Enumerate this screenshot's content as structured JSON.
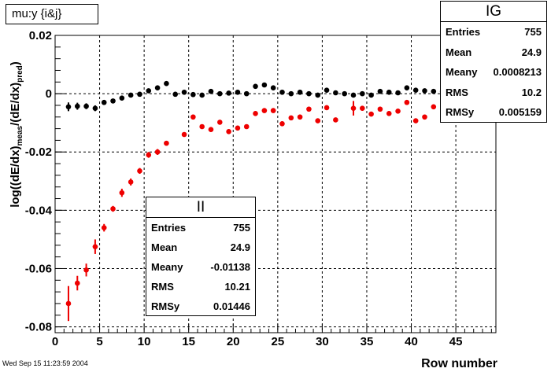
{
  "title": "mu:y {i&j}",
  "footer": "Wed Sep 15 11:23:59 2004",
  "colors": {
    "series_ig": "#000000",
    "series_ii": "#ee0000",
    "grid": "#000000"
  },
  "stats": {
    "ig": {
      "title": "IG",
      "rows": [
        {
          "label": "Entries",
          "value": "755"
        },
        {
          "label": "Mean",
          "value": "24.9"
        },
        {
          "label": "Meany",
          "value": "0.0008213"
        },
        {
          "label": "RMS",
          "value": "10.2"
        },
        {
          "label": "RMSy",
          "value": "0.005159"
        }
      ]
    },
    "ii": {
      "title": "II",
      "rows": [
        {
          "label": "Entries",
          "value": "755"
        },
        {
          "label": "Mean",
          "value": "24.9"
        },
        {
          "label": "Meany",
          "value": "-0.01138"
        },
        {
          "label": "RMS",
          "value": "10.21"
        },
        {
          "label": "RMSy",
          "value": "0.01446"
        }
      ]
    }
  },
  "chart_data": {
    "type": "scatter",
    "xlabel": "Row number",
    "ylabel": "log((dE/dx)meas/(dE/dx)pred)",
    "xlim": [
      0,
      49.5
    ],
    "ylim": [
      -0.082,
      0.02
    ],
    "grid": true,
    "x_ticks": [
      0,
      5,
      10,
      15,
      20,
      25,
      30,
      35,
      40,
      45
    ],
    "x_tick_labels": [
      "0",
      "5",
      "10",
      "15",
      "20",
      "25",
      "30",
      "35",
      "40",
      "45"
    ],
    "y_ticks": [
      -0.08,
      -0.06,
      -0.04,
      -0.02,
      0,
      0.02
    ],
    "y_tick_labels": [
      "-0.08",
      "-0.06",
      "-0.04",
      "-0.02",
      "0",
      "0.02"
    ],
    "series": [
      {
        "name": "IG",
        "color": "#000000",
        "x": [
          1.5,
          2.5,
          3.5,
          4.5,
          5.5,
          6.5,
          7.5,
          8.5,
          9.5,
          10.5,
          11.5,
          12.5,
          13.5,
          14.5,
          15.5,
          16.5,
          17.5,
          18.5,
          19.5,
          20.5,
          21.5,
          22.5,
          23.5,
          24.5,
          25.5,
          26.5,
          27.5,
          28.5,
          29.5,
          30.5,
          31.5,
          32.5,
          33.5,
          34.5,
          35.5,
          36.5,
          37.5,
          38.5,
          39.5,
          40.5,
          41.5,
          42.5,
          43.5
        ],
        "y": [
          -0.0045,
          -0.0043,
          -0.0043,
          -0.005,
          -0.003,
          -0.0025,
          -0.0015,
          -0.0005,
          -0.0002,
          0.001,
          0.002,
          0.0035,
          -0.0002,
          0.0005,
          -0.0003,
          -0.0005,
          0.0008,
          0.0,
          0.0002,
          0.0005,
          0.0,
          0.0025,
          0.003,
          0.002,
          0.0005,
          0.0,
          0.0005,
          0.0,
          -0.0005,
          0.0012,
          0.0003,
          0.0,
          -0.0005,
          0.0,
          -0.0005,
          0.0008,
          0.0005,
          0.0003,
          0.002,
          0.0012,
          0.001,
          0.0008,
          0.0008
        ],
        "yerr": [
          0.0015,
          0.0012,
          0.001,
          0.001,
          0.0008,
          0.0008,
          0.0008,
          0.0008,
          0.0008,
          0.0008,
          0.0008,
          0.0008,
          0.0008,
          0.0008,
          0.0008,
          0.0008,
          0.0008,
          0.0008,
          0.0008,
          0.0008,
          0.0008,
          0.0008,
          0.0008,
          0.0008,
          0.0008,
          0.0008,
          0.0008,
          0.0008,
          0.0008,
          0.0008,
          0.0008,
          0.0008,
          0.0008,
          0.0008,
          0.0008,
          0.0008,
          0.0008,
          0.0008,
          0.0008,
          0.0008,
          0.0008,
          0.0008,
          0.0008
        ]
      },
      {
        "name": "II",
        "color": "#ee0000",
        "x": [
          1.5,
          2.5,
          3.5,
          4.5,
          5.5,
          6.5,
          7.5,
          8.5,
          9.5,
          10.5,
          11.5,
          12.5,
          14.5,
          15.5,
          16.5,
          17.5,
          18.5,
          19.5,
          20.5,
          21.5,
          22.5,
          23.5,
          24.5,
          25.5,
          26.5,
          27.5,
          28.5,
          29.5,
          30.5,
          31.5,
          33.5,
          34.5,
          35.5,
          36.5,
          37.5,
          38.5,
          39.5,
          40.5,
          41.5,
          42.5
        ],
        "y": [
          -0.072,
          -0.065,
          -0.0605,
          -0.0525,
          -0.046,
          -0.0395,
          -0.034,
          -0.0303,
          -0.0265,
          -0.021,
          -0.02,
          -0.017,
          -0.014,
          -0.008,
          -0.0113,
          -0.0123,
          -0.0098,
          -0.013,
          -0.0118,
          -0.0113,
          -0.0068,
          -0.0058,
          -0.0058,
          -0.0103,
          -0.0083,
          -0.008,
          -0.0053,
          -0.0093,
          -0.0048,
          -0.009,
          -0.005,
          -0.005,
          -0.007,
          -0.0053,
          -0.0068,
          -0.006,
          -0.003,
          -0.0093,
          -0.008,
          -0.0045
        ],
        "yerr": [
          0.006,
          0.0025,
          0.0022,
          0.0025,
          0.0013,
          0.001,
          0.0014,
          0.0012,
          0.001,
          0.001,
          0.001,
          0.0008,
          0.0008,
          0.0008,
          0.0008,
          0.0008,
          0.0008,
          0.0008,
          0.0008,
          0.0008,
          0.0008,
          0.0008,
          0.0008,
          0.0008,
          0.0008,
          0.0008,
          0.0008,
          0.0008,
          0.0008,
          0.0008,
          0.0025,
          0.0008,
          0.0008,
          0.0008,
          0.0008,
          0.0008,
          0.0008,
          0.0008,
          0.0008,
          0.0008
        ]
      }
    ]
  }
}
